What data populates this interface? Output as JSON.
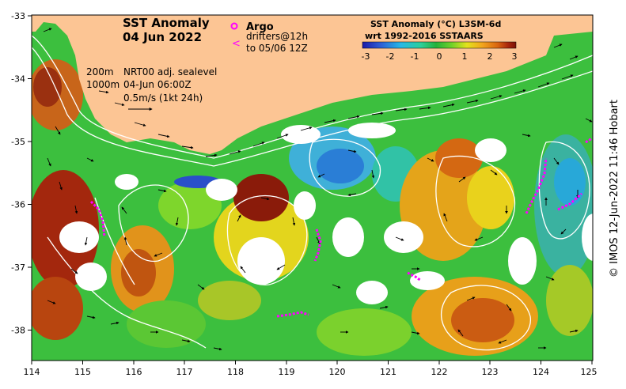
{
  "map": {
    "title_line1": "SST Anomaly",
    "title_line2": "04 Jun 2022",
    "legend_title_line1": "SST Anomaly (°C) L3SM-6d",
    "legend_title_line2": "wrt 1992-2016 SSTAARS",
    "argo_label": "Argo",
    "drifters_line1": "drifters@12h",
    "drifters_line2": "to 05/06 12Z",
    "contour_depth_1": "200m",
    "contour_depth_2": "1000m",
    "sealevel_line1": "NRT00 adj. sealevel",
    "sealevel_line2": "04-Jun 06:00Z",
    "vector_scale_label": "0.5m/s (1kt 24h)",
    "credit": "© IMOS 12-Jun-2022 11:46 Hobart"
  },
  "axes": {
    "x_ticks": [
      "114",
      "115",
      "116",
      "117",
      "118",
      "119",
      "120",
      "121",
      "122",
      "123",
      "124",
      "125"
    ],
    "y_ticks": [
      "-33",
      "-34",
      "-35",
      "-36",
      "-37",
      "-38"
    ]
  },
  "colorbar": {
    "ticks": [
      "-3",
      "-2",
      "-1",
      "0",
      "1",
      "2",
      "3"
    ],
    "colors": [
      "#1a1aa8",
      "#2c5fd6",
      "#27b8e6",
      "#2ccf9a",
      "#25b23a",
      "#6fd12a",
      "#e3e21d",
      "#f2a51c",
      "#d96510",
      "#a8260c",
      "#7a1208"
    ]
  },
  "colors": {
    "land": "#fcc594",
    "argo_marker": "#ff00ff",
    "contour": "#ffffff",
    "vector": "#000000"
  }
}
